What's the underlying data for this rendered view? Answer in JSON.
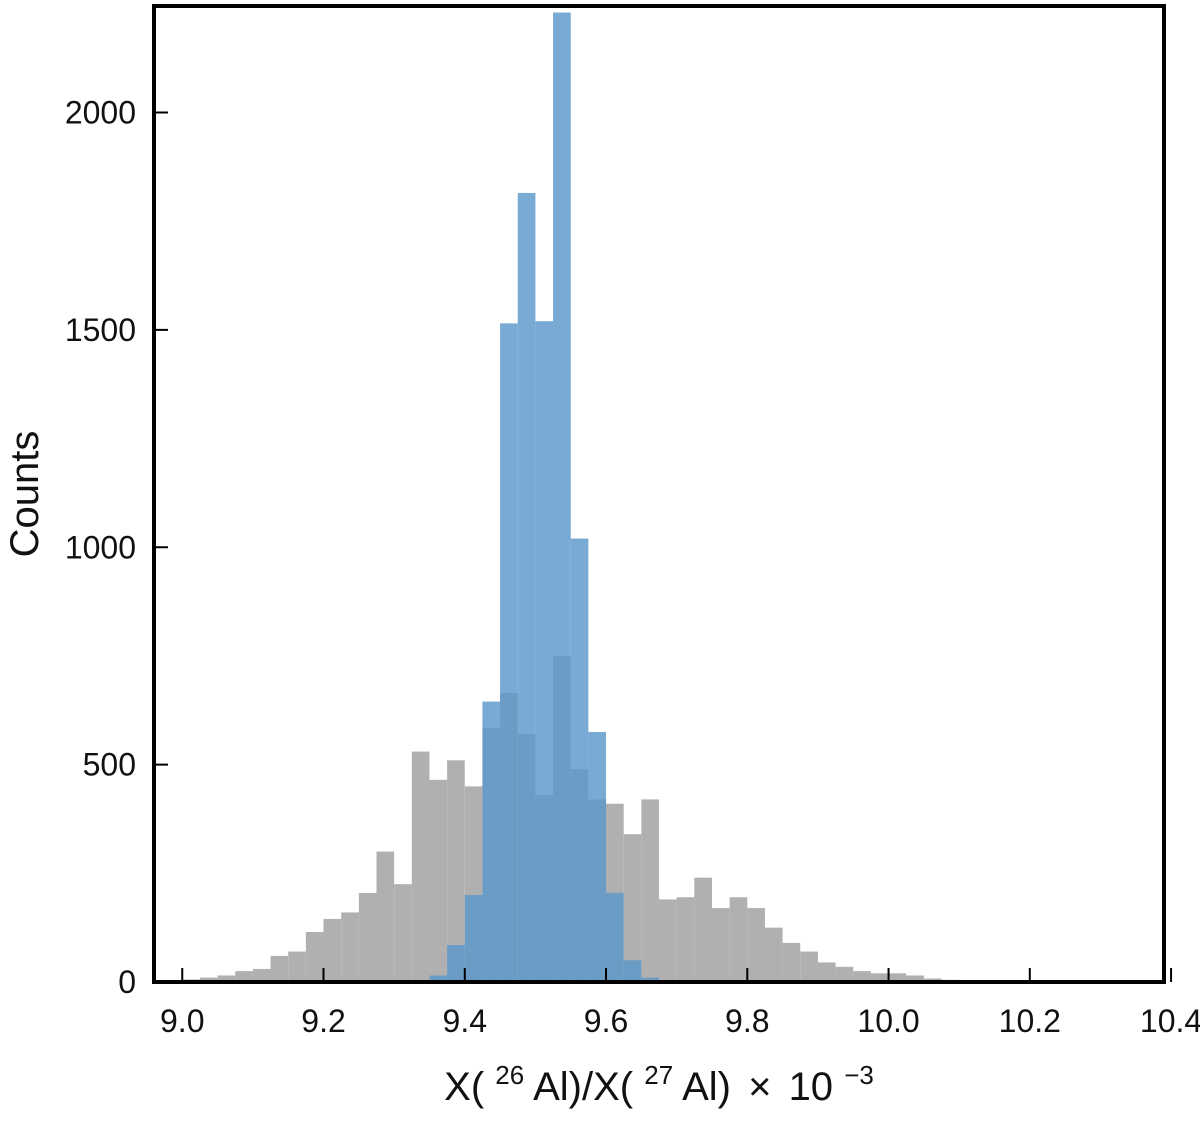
{
  "chart_data": {
    "type": "bar",
    "title": "",
    "ylabel": "Counts",
    "xlabel": {
      "parts": [
        "X(",
        "26",
        "Al)/X(",
        "27",
        "Al)",
        "×",
        "10",
        "−3"
      ]
    },
    "xlim": [
      8.96,
      10.39
    ],
    "ylim": [
      0,
      2245
    ],
    "xticks": [
      9.0,
      9.2,
      9.4,
      9.6,
      9.8,
      10.0,
      10.2,
      10.4
    ],
    "xtick_labels": [
      "9.0",
      "9.2",
      "9.4",
      "9.6",
      "9.8",
      "10.0",
      "10.2",
      "10.4"
    ],
    "yticks": [
      0,
      500,
      1000,
      1500,
      2000
    ],
    "ytick_labels": [
      "0",
      "500",
      "1000",
      "1500",
      "2000"
    ],
    "bin_width": 0.025,
    "series": [
      {
        "color": "#b0b0b0",
        "bins": [
          [
            8.975,
            2
          ],
          [
            9.0,
            6
          ],
          [
            9.025,
            10
          ],
          [
            9.05,
            15
          ],
          [
            9.075,
            25
          ],
          [
            9.1,
            30
          ],
          [
            9.125,
            60
          ],
          [
            9.15,
            70
          ],
          [
            9.175,
            115
          ],
          [
            9.2,
            145
          ],
          [
            9.225,
            160
          ],
          [
            9.25,
            205
          ],
          [
            9.275,
            300
          ],
          [
            9.3,
            225
          ],
          [
            9.325,
            530
          ],
          [
            9.35,
            465
          ],
          [
            9.375,
            510
          ],
          [
            9.4,
            450
          ],
          [
            9.425,
            585
          ],
          [
            9.45,
            665
          ],
          [
            9.475,
            570
          ],
          [
            9.5,
            430
          ],
          [
            9.525,
            750
          ],
          [
            9.55,
            490
          ],
          [
            9.575,
            420
          ],
          [
            9.6,
            410
          ],
          [
            9.625,
            340
          ],
          [
            9.65,
            420
          ],
          [
            9.675,
            190
          ],
          [
            9.7,
            195
          ],
          [
            9.725,
            240
          ],
          [
            9.75,
            170
          ],
          [
            9.775,
            195
          ],
          [
            9.8,
            170
          ],
          [
            9.825,
            125
          ],
          [
            9.85,
            90
          ],
          [
            9.875,
            70
          ],
          [
            9.9,
            45
          ],
          [
            9.925,
            35
          ],
          [
            9.95,
            25
          ],
          [
            9.975,
            20
          ],
          [
            10.0,
            20
          ],
          [
            10.025,
            15
          ],
          [
            10.05,
            8
          ],
          [
            10.075,
            5
          ],
          [
            10.1,
            4
          ],
          [
            10.125,
            3
          ],
          [
            10.15,
            2
          ]
        ]
      },
      {
        "color": "#5a97cb",
        "bins": [
          [
            9.35,
            15
          ],
          [
            9.375,
            85
          ],
          [
            9.4,
            200
          ],
          [
            9.425,
            645
          ],
          [
            9.45,
            1515
          ],
          [
            9.475,
            1815
          ],
          [
            9.5,
            1520
          ],
          [
            9.525,
            2230
          ],
          [
            9.55,
            1020
          ],
          [
            9.575,
            575
          ],
          [
            9.6,
            205
          ],
          [
            9.625,
            50
          ],
          [
            9.65,
            10
          ],
          [
            9.675,
            2
          ]
        ]
      }
    ]
  }
}
